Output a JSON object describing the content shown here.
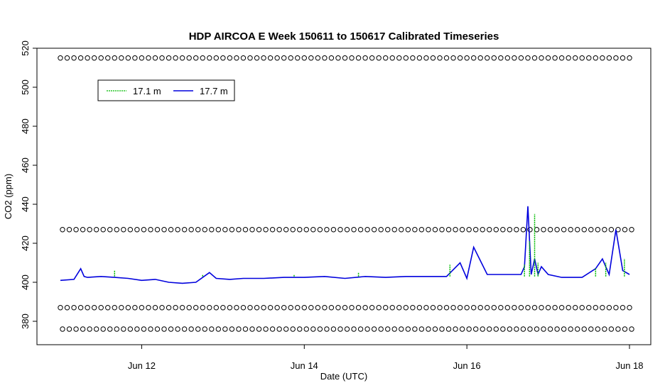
{
  "chart_data": {
    "type": "line",
    "title": "HDP AIRCOA E  Week 150611 to 150617  Calibrated Timeseries",
    "xlabel": "Date (UTC)",
    "ylabel": "CO2 (ppm)",
    "xlim": [
      "2015-06-11 00:00",
      "2015-06-18 00:00"
    ],
    "ylim": [
      370,
      520
    ],
    "x_ticks": [
      "Jun 12",
      "Jun 14",
      "Jun 16",
      "Jun 18"
    ],
    "y_ticks": [
      380,
      400,
      420,
      440,
      460,
      480,
      500,
      520
    ],
    "legend": {
      "placement": "top-left",
      "entries": [
        "17.1 m",
        "17.7 m"
      ]
    },
    "colors": {
      "17.1 m": "#00bb00",
      "17.7 m": "#0000dd",
      "reference": "#000000"
    },
    "series": [
      {
        "name": "17.7 m",
        "x": [
          "2015-06-11 00:00",
          "2015-06-11 04:00",
          "2015-06-11 06:00",
          "2015-06-11 07:00",
          "2015-06-11 08:00",
          "2015-06-11 12:00",
          "2015-06-11 16:00",
          "2015-06-11 20:00",
          "2015-06-12 00:00",
          "2015-06-12 04:00",
          "2015-06-12 08:00",
          "2015-06-12 12:00",
          "2015-06-12 16:00",
          "2015-06-12 20:00",
          "2015-06-12 22:00",
          "2015-06-13 02:00",
          "2015-06-13 06:00",
          "2015-06-13 12:00",
          "2015-06-13 18:00",
          "2015-06-14 00:00",
          "2015-06-14 06:00",
          "2015-06-14 12:00",
          "2015-06-14 18:00",
          "2015-06-15 00:00",
          "2015-06-15 06:00",
          "2015-06-15 12:00",
          "2015-06-15 18:00",
          "2015-06-15 22:00",
          "2015-06-16 00:00",
          "2015-06-16 02:00",
          "2015-06-16 06:00",
          "2015-06-16 12:00",
          "2015-06-16 16:00",
          "2015-06-16 17:00",
          "2015-06-16 18:00",
          "2015-06-16 19:00",
          "2015-06-16 20:00",
          "2015-06-16 21:00",
          "2015-06-16 22:00",
          "2015-06-17 00:00",
          "2015-06-17 04:00",
          "2015-06-17 10:00",
          "2015-06-17 14:00",
          "2015-06-17 16:00",
          "2015-06-17 18:00",
          "2015-06-17 20:00",
          "2015-06-17 22:00",
          "2015-06-18 00:00"
        ],
        "values": [
          401,
          401.5,
          407,
          403,
          402.5,
          403,
          402.5,
          402,
          401,
          401.5,
          400,
          399.5,
          400,
          405,
          402,
          401.5,
          402,
          402,
          402.5,
          402.5,
          403,
          402,
          403,
          402.5,
          403,
          403,
          403,
          410,
          402,
          418,
          404,
          404,
          404,
          408,
          439,
          404,
          412,
          404,
          408,
          404,
          402.5,
          402.5,
          407,
          412,
          404,
          427,
          406,
          404
        ]
      },
      {
        "name": "17.1 m",
        "x": [
          "2015-06-11 16:00",
          "2015-06-12 18:00",
          "2015-06-13 21:00",
          "2015-06-14 16:00",
          "2015-06-15 19:00",
          "2015-06-16 17:00",
          "2015-06-16 18:30",
          "2015-06-16 20:00",
          "2015-06-16 21:00",
          "2015-06-17 14:00",
          "2015-06-17 17:00",
          "2015-06-17 22:30"
        ],
        "values": [
          406,
          404,
          404,
          405,
          409,
          409,
          421,
          435,
          410,
          407,
          410,
          412
        ]
      },
      {
        "name": "",
        "values": [
          515,
          427,
          387,
          376
        ]
      }
    ]
  }
}
